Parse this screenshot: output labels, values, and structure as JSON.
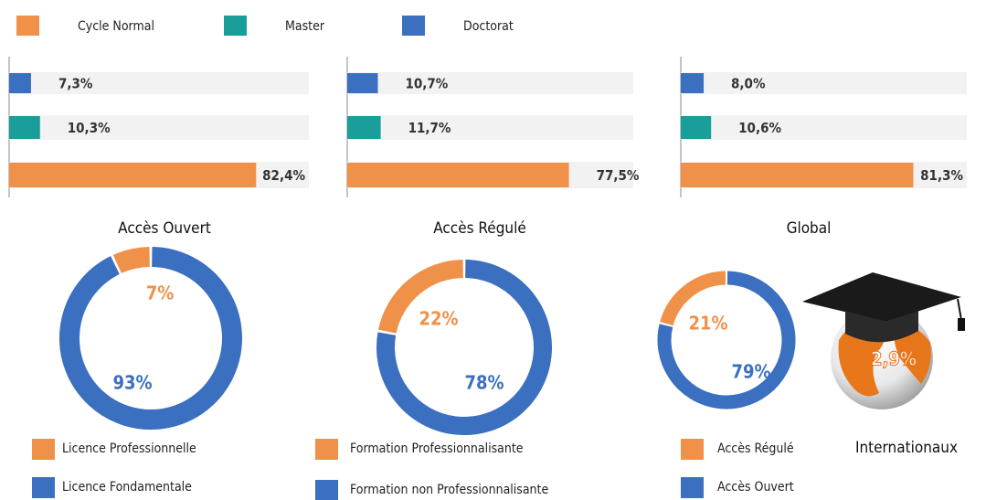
{
  "legend": [
    {
      "name": "Cycle Normal",
      "color": "#f0914a"
    },
    {
      "name": "Master",
      "color": "#1a9e99"
    },
    {
      "name": "Doctorat",
      "color": "#3b6fbf"
    }
  ],
  "chart_data": [
    {
      "type": "bar",
      "orientation": "horizontal",
      "title": "Accès Ouvert",
      "values": [
        82.4,
        10.3,
        7.3
      ],
      "value_labels": [
        "82,4%",
        "10,3%",
        "7,3%"
      ],
      "xlim": [
        0,
        100
      ]
    },
    {
      "type": "bar",
      "orientation": "horizontal",
      "title": "Accès Régulé",
      "values": [
        77.5,
        11.7,
        10.7
      ],
      "value_labels": [
        "77,5%",
        "11,7%",
        "10,7%"
      ],
      "xlim": [
        0,
        100
      ]
    },
    {
      "type": "bar",
      "orientation": "horizontal",
      "title": "Global",
      "values": [
        81.3,
        10.6,
        8.0
      ],
      "value_labels": [
        "81,3%",
        "10,6%",
        "8,0%"
      ],
      "xlim": [
        0,
        100
      ]
    },
    {
      "type": "donut",
      "labels": [
        "Licence Professionnelle",
        "Licence Fondamentale"
      ],
      "values": [
        7,
        93
      ],
      "value_labels": [
        "7%",
        "93%"
      ],
      "colors": [
        "#f0914a",
        "#3b6fbf"
      ]
    },
    {
      "type": "donut",
      "labels": [
        "Formation Professionnalisante",
        "Formation non Professionnalisante"
      ],
      "values": [
        22,
        78
      ],
      "value_labels": [
        "22%",
        "78%"
      ],
      "colors": [
        "#f0914a",
        "#3b6fbf"
      ]
    },
    {
      "type": "donut",
      "labels": [
        "Accès Régulé",
        "Accès Ouvert"
      ],
      "values": [
        21,
        79
      ],
      "value_labels": [
        "21%",
        "79%"
      ],
      "colors": [
        "#f0914a",
        "#3b6fbf"
      ]
    },
    {
      "type": "stat",
      "title": "Internationaux",
      "values": [
        2.9
      ],
      "value_labels": [
        "2,9%"
      ]
    }
  ]
}
